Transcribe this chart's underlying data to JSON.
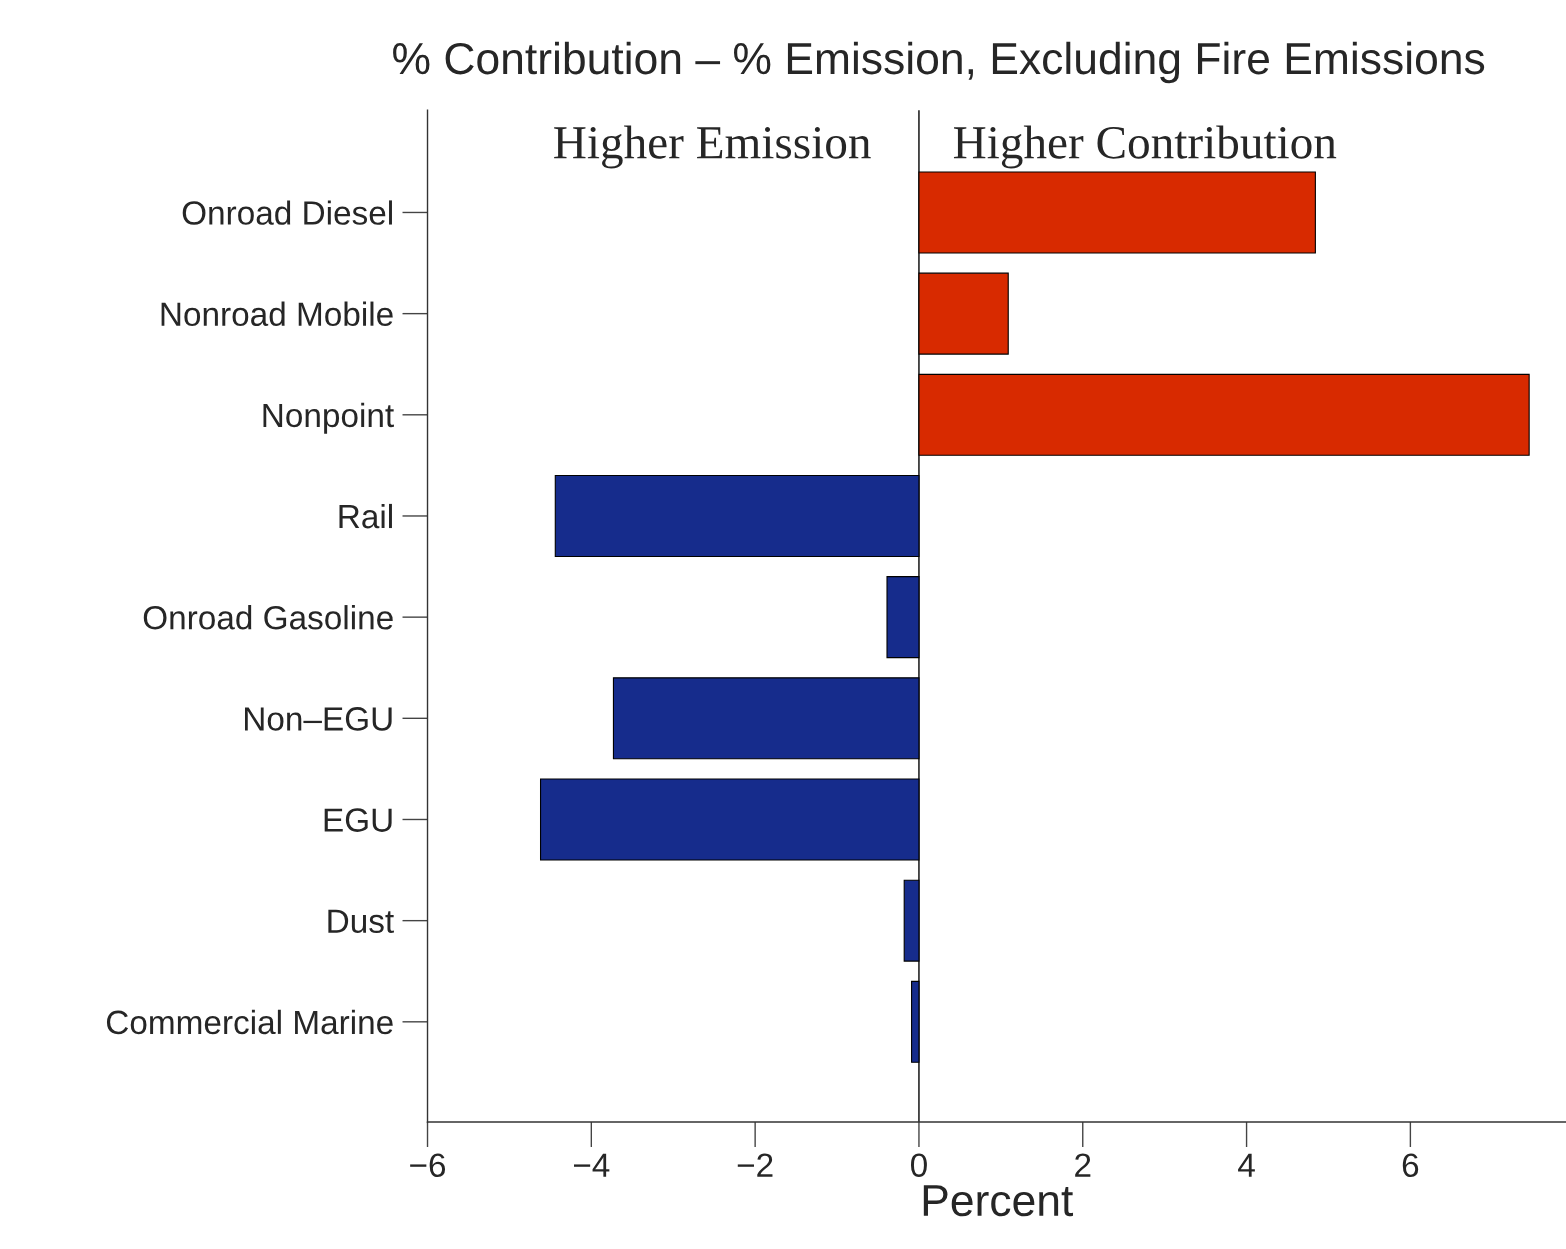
{
  "chart_data": {
    "type": "bar",
    "orientation": "horizontal",
    "subtitle": "% Contribution – % Emission, Excluding Fire Emissions",
    "xlabel": "Percent",
    "annotations": [
      "Higher Emission",
      "Higher Contribution"
    ],
    "categories": [
      "Onroad Diesel",
      "Nonroad Mobile",
      "Nonpoint",
      "Rail",
      "Onroad Gasoline",
      "Non–EGU",
      "EGU",
      "Dust",
      "Commercial Marine"
    ],
    "values": [
      4.84,
      1.09,
      7.45,
      -4.44,
      -0.39,
      -3.73,
      -4.62,
      -0.18,
      -0.09
    ],
    "colors": [
      "#d82a00",
      "#d82a00",
      "#d82a00",
      "#162c8c",
      "#162c8c",
      "#162c8c",
      "#162c8c",
      "#162c8c",
      "#162c8c"
    ],
    "xlim": [
      -6,
      7.9
    ],
    "xticks": [
      {
        "value": -6,
        "label": "−6"
      },
      {
        "value": -4,
        "label": "−4"
      },
      {
        "value": -2,
        "label": "−2"
      },
      0,
      2,
      4,
      6
    ],
    "ref_lines": [
      {
        "axis": "x",
        "value": 0,
        "color": "#000000"
      }
    ],
    "grid": false
  }
}
